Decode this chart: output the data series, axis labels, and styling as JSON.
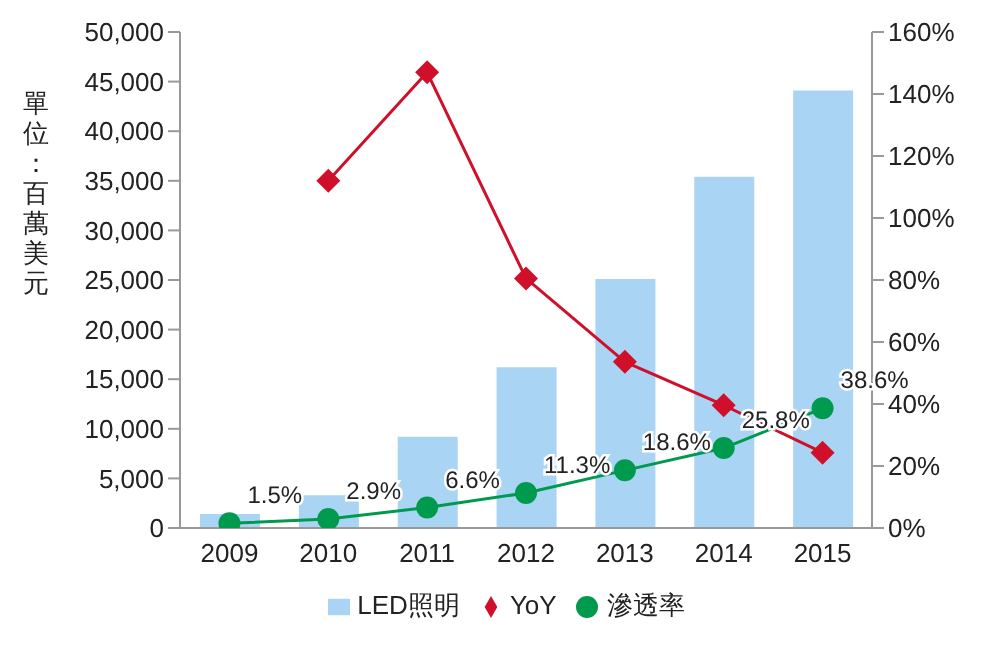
{
  "chart_data": {
    "type": "bar",
    "ylabel": "單位：百萬美元",
    "categories": [
      "2009",
      "2010",
      "2011",
      "2012",
      "2013",
      "2014",
      "2015"
    ],
    "series": [
      {
        "name": "LED照明",
        "color": "#aad4f4",
        "values": [
          1400,
          3300,
          9200,
          16200,
          25100,
          35400,
          44100
        ]
      },
      {
        "name": "YoY",
        "type": "line",
        "axis": "y2",
        "color": "#d0102a",
        "marker": "diamond",
        "values": [
          null,
          112,
          147,
          80.5,
          53.6,
          39.6,
          24.3
        ]
      },
      {
        "name": "滲透率",
        "type": "line",
        "axis": "y2",
        "color": "#009a4e",
        "marker": "circle",
        "values": [
          1.5,
          2.9,
          6.6,
          11.3,
          18.6,
          25.8,
          38.6
        ],
        "value_labels": [
          "1.5%",
          "2.9%",
          "6.6%",
          "11.3%",
          "18.6%",
          "25.8%",
          "38.6%"
        ]
      }
    ],
    "ylim": [
      0,
      50000
    ],
    "yticks": [
      {
        "value": 0,
        "label": "0"
      },
      {
        "value": 5000,
        "label": "5,000"
      },
      {
        "value": 10000,
        "label": "10,000"
      },
      {
        "value": 15000,
        "label": "15,000"
      },
      {
        "value": 20000,
        "label": "20,000"
      },
      {
        "value": 25000,
        "label": "25,000"
      },
      {
        "value": 30000,
        "label": "30,000"
      },
      {
        "value": 35000,
        "label": "35,000"
      },
      {
        "value": 40000,
        "label": "40,000"
      },
      {
        "value": 45000,
        "label": "45,000"
      },
      {
        "value": 50000,
        "label": "50,000"
      }
    ],
    "y2lim": [
      0,
      160
    ],
    "y2ticks": [
      {
        "value": 0,
        "label": "0%"
      },
      {
        "value": 20,
        "label": "20%"
      },
      {
        "value": 40,
        "label": "40%"
      },
      {
        "value": 60,
        "label": "60%"
      },
      {
        "value": 80,
        "label": "80%"
      },
      {
        "value": 100,
        "label": "100%"
      },
      {
        "value": 120,
        "label": "120%"
      },
      {
        "value": 140,
        "label": "140%"
      },
      {
        "value": 160,
        "label": "160%"
      }
    ],
    "grid": false,
    "legend": "bottom"
  }
}
